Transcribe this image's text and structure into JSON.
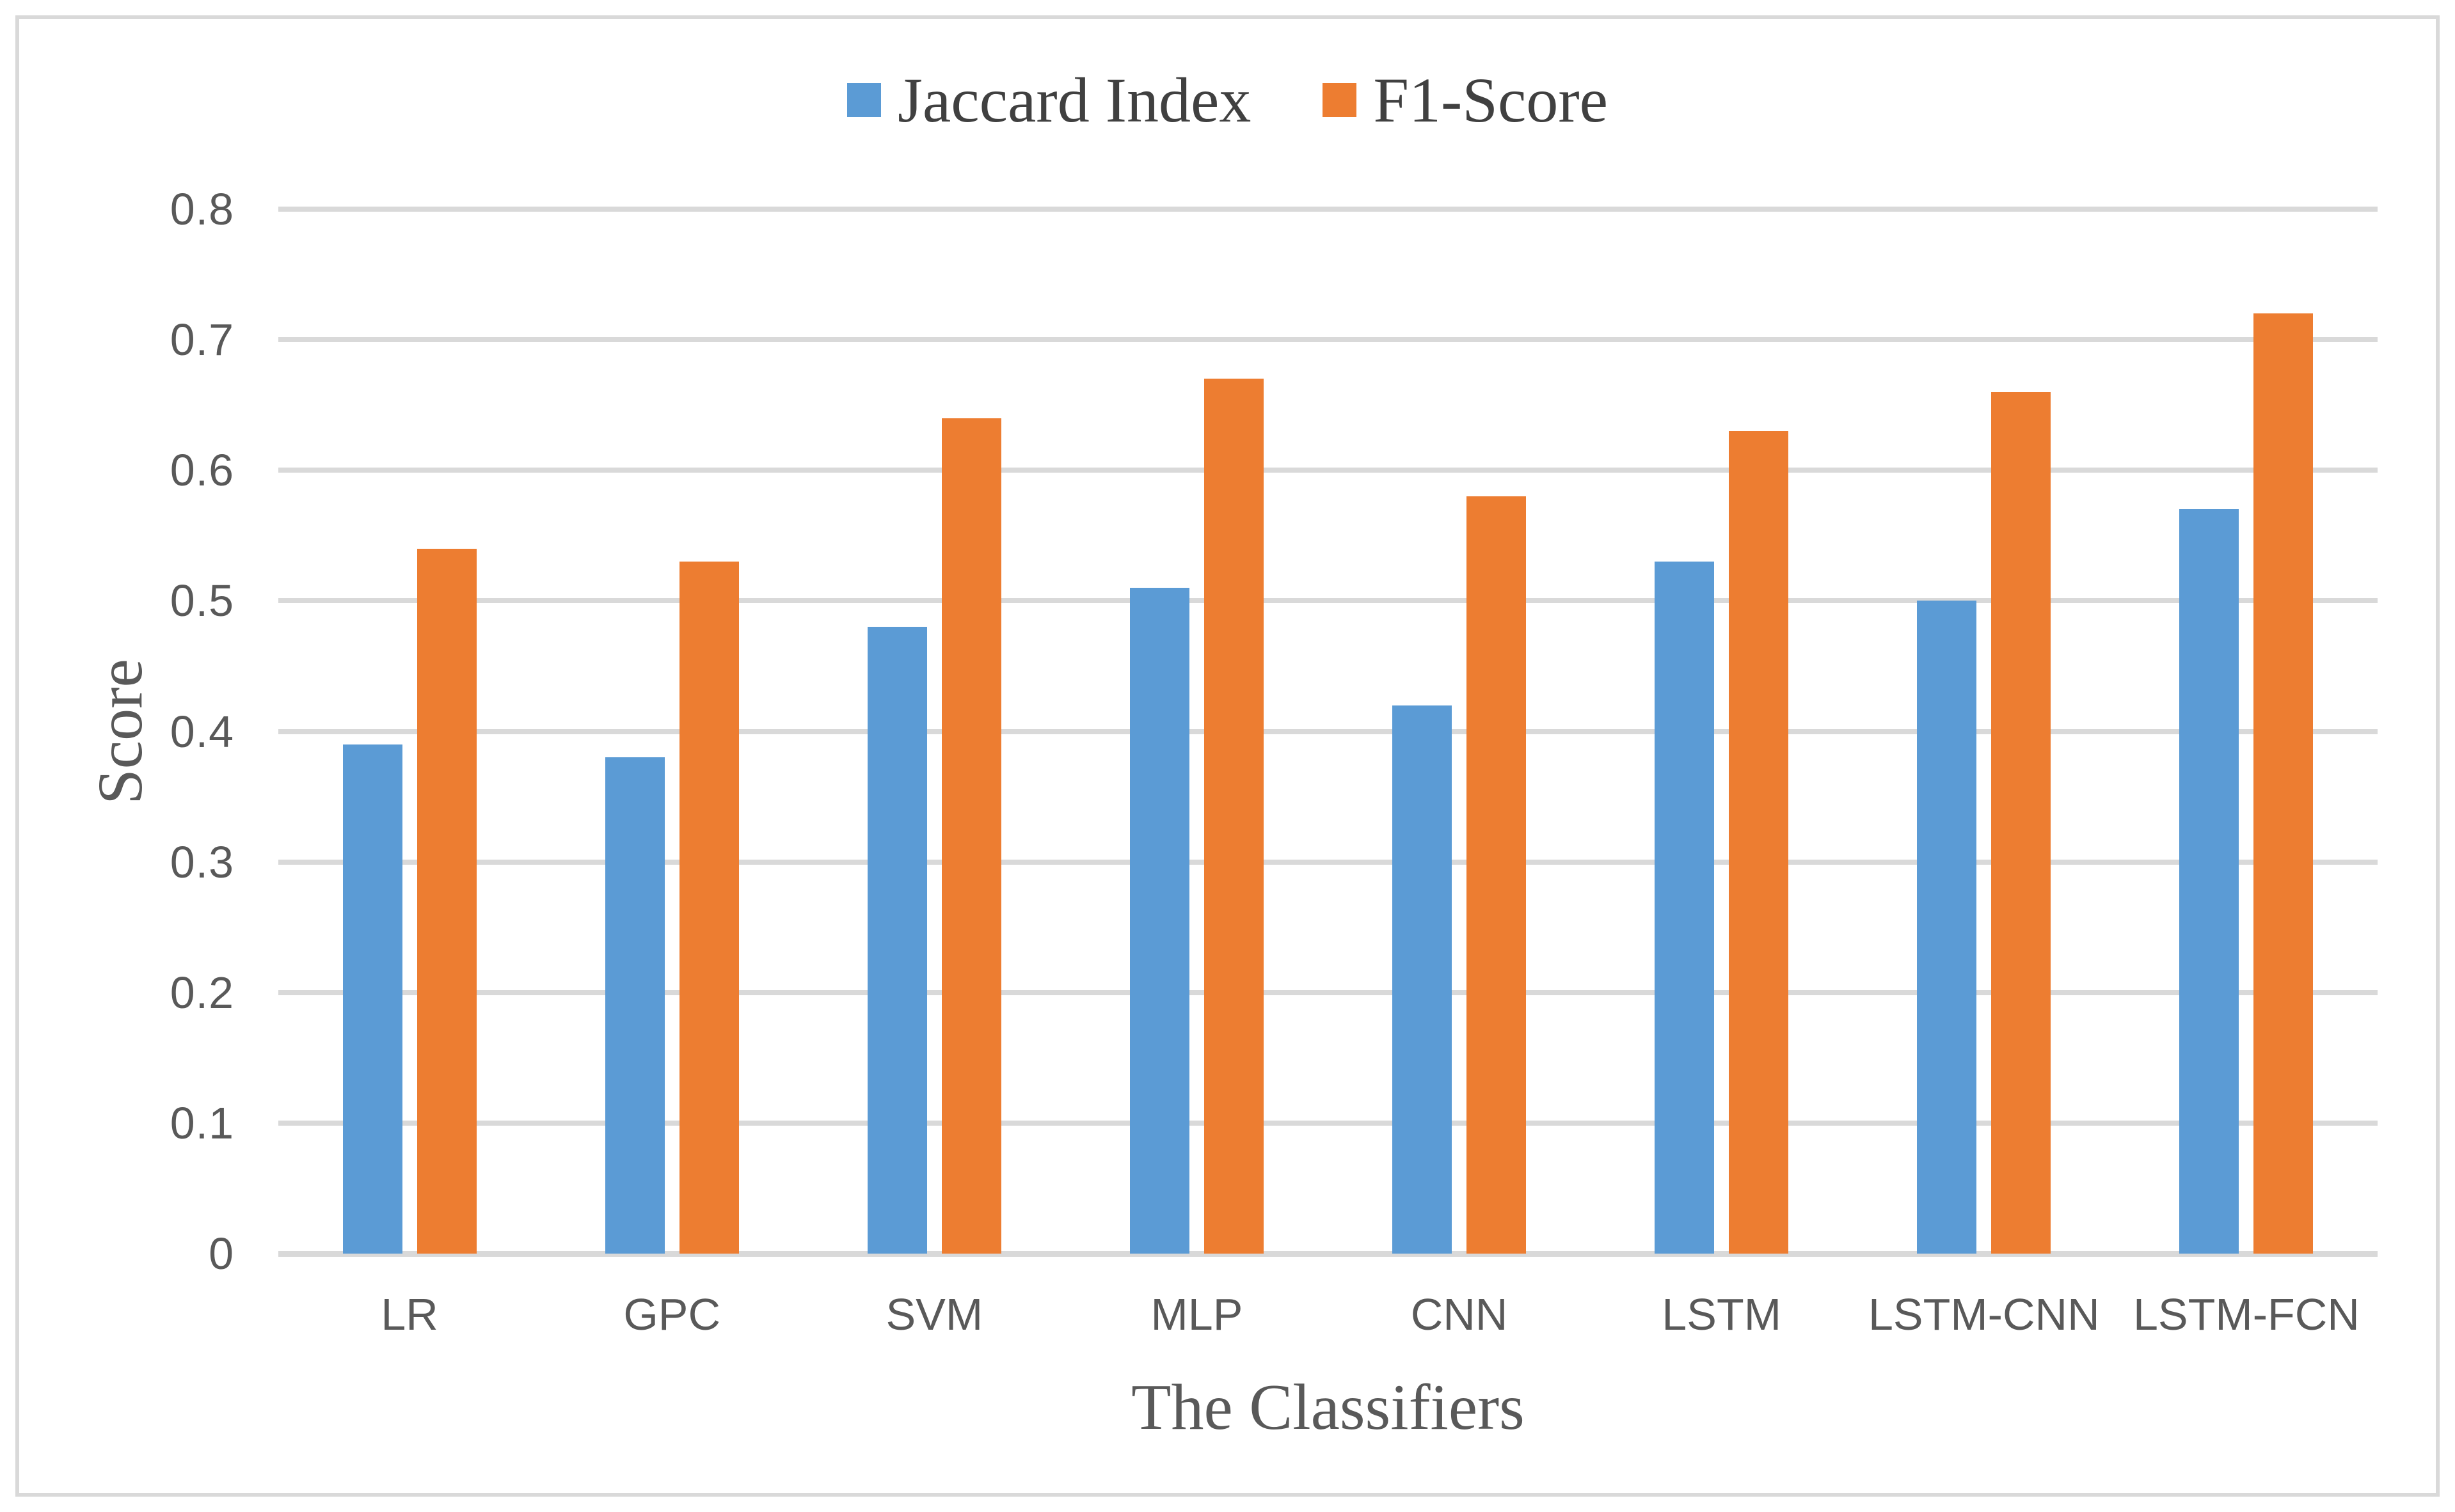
{
  "chart_data": {
    "type": "bar",
    "title": "",
    "categories": [
      "LR",
      "GPC",
      "SVM",
      "MLP",
      "CNN",
      "LSTM",
      "LSTM-CNN",
      "LSTM-FCN"
    ],
    "series": [
      {
        "name": "Jaccard Index",
        "color": "#5B9BD5",
        "values": [
          0.39,
          0.38,
          0.48,
          0.51,
          0.42,
          0.53,
          0.5,
          0.57
        ]
      },
      {
        "name": "F1-Score",
        "color": "#ED7D31",
        "values": [
          0.54,
          0.53,
          0.64,
          0.67,
          0.58,
          0.63,
          0.66,
          0.72
        ]
      }
    ],
    "xlabel": "The Classifiers",
    "ylabel": "Score",
    "ylim": [
      0,
      0.8
    ],
    "ytick_step": 0.1,
    "ytick_labels": [
      "0",
      "0.1",
      "0.2",
      "0.3",
      "0.4",
      "0.5",
      "0.6",
      "0.7",
      "0.8"
    ],
    "grid": "horizontal",
    "gridline_color": "#D9D9D9",
    "axis_line_color": "#D9D9D9",
    "border_color": "#D9D9D9",
    "axis_text_color": "#595959",
    "legend_text_color": "#404040",
    "legend_position": "top-center"
  }
}
